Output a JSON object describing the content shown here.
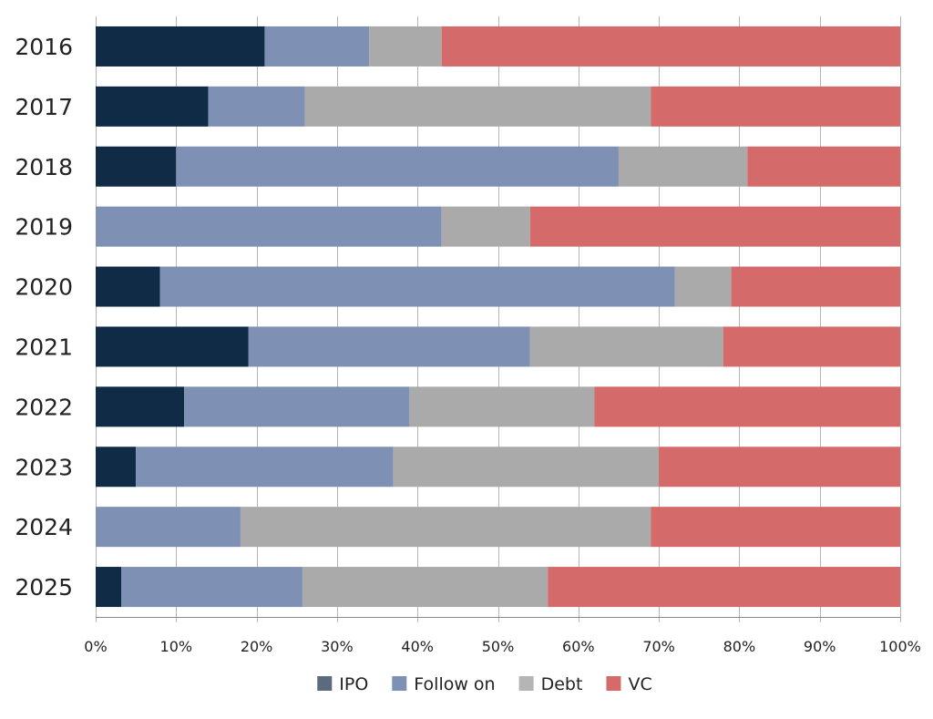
{
  "chart_data": {
    "type": "bar",
    "orientation": "horizontal",
    "stacked": true,
    "percent": true,
    "categories": [
      "2016",
      "2017",
      "2018",
      "2019",
      "2020",
      "2021",
      "2022",
      "2023",
      "2024",
      "2025"
    ],
    "series": [
      {
        "name": "IPO",
        "color": "#0f2b46",
        "legend_color": "#5b6b7d",
        "values": [
          21,
          14,
          10,
          0,
          8,
          19,
          11,
          5,
          0,
          3.2
        ]
      },
      {
        "name": "Follow on",
        "color": "#7f90b5",
        "legend_color": "#7f90b5",
        "values": [
          13,
          12,
          55,
          43,
          64,
          35,
          28,
          32,
          18,
          22.5
        ]
      },
      {
        "name": "Debt",
        "color": "#aaaaaa",
        "legend_color": "#b5b5b5",
        "values": [
          9,
          43,
          16,
          11,
          7,
          24,
          23,
          33,
          51,
          30.5
        ]
      },
      {
        "name": "VC",
        "color": "#d46a6a",
        "legend_color": "#d46a6a",
        "values": [
          57,
          31,
          19,
          46,
          21,
          22,
          38,
          30,
          31,
          43.8
        ]
      }
    ],
    "xlim": [
      0,
      100
    ],
    "xticks": [
      "0%",
      "10%",
      "20%",
      "30%",
      "40%",
      "50%",
      "60%",
      "70%",
      "80%",
      "90%",
      "100%"
    ],
    "title": "",
    "xlabel": "",
    "ylabel": "",
    "grid": "vertical",
    "legend": "bottom-center"
  }
}
